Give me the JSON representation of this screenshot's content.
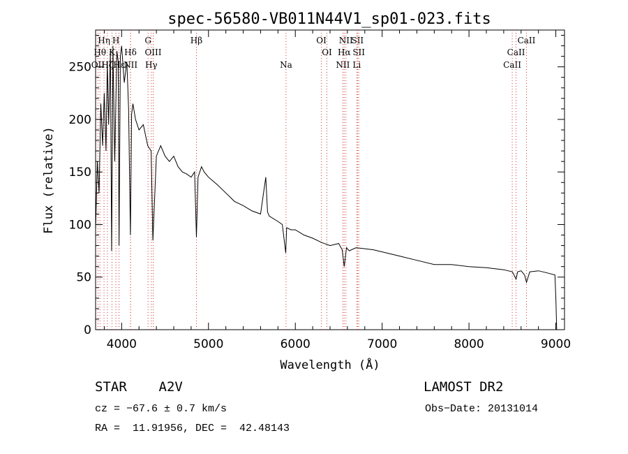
{
  "chart_data": {
    "type": "line",
    "title": "spec-56580-VB011N44V1_sp01-023.fits",
    "xlabel": "Wavelength (Å)",
    "ylabel": "Flux (relative)",
    "xlim": [
      3700,
      9100
    ],
    "ylim": [
      0,
      285
    ],
    "xticks": [
      4000,
      5000,
      6000,
      7000,
      8000,
      9000
    ],
    "yticks": [
      0,
      50,
      100,
      150,
      200,
      250
    ],
    "grid": false,
    "series": [
      {
        "x": [
          3700,
          3720,
          3740,
          3760,
          3780,
          3800,
          3820,
          3835,
          3850,
          3870,
          3885,
          3900,
          3920,
          3945,
          3960,
          3970,
          3985,
          4000,
          4030,
          4060,
          4080,
          4101,
          4115,
          4130,
          4160,
          4200,
          4250,
          4300,
          4340,
          4360,
          4400,
          4450,
          4500,
          4550,
          4600,
          4650,
          4700,
          4750,
          4800,
          4840,
          4861,
          4880,
          4920,
          4950,
          5000,
          5100,
          5200,
          5300,
          5400,
          5500,
          5600,
          5660,
          5680,
          5700,
          5800,
          5850,
          5890,
          5900,
          5950,
          6000,
          6100,
          6200,
          6300,
          6400,
          6500,
          6540,
          6563,
          6590,
          6620,
          6700,
          6800,
          6900,
          7000,
          7200,
          7400,
          7600,
          7800,
          8000,
          8200,
          8400,
          8500,
          8542,
          8560,
          8600,
          8640,
          8662,
          8700,
          8800,
          8900,
          8990,
          9000,
          9010
        ],
        "y": [
          95,
          160,
          130,
          215,
          175,
          225,
          170,
          255,
          195,
          265,
          75,
          270,
          160,
          265,
          255,
          80,
          260,
          270,
          235,
          255,
          210,
          90,
          205,
          215,
          200,
          190,
          195,
          175,
          170,
          85,
          165,
          175,
          165,
          160,
          165,
          155,
          150,
          148,
          145,
          150,
          88,
          145,
          155,
          150,
          145,
          138,
          130,
          122,
          118,
          113,
          110,
          145,
          112,
          108,
          103,
          100,
          73,
          97,
          95,
          95,
          90,
          87,
          83,
          80,
          82,
          76,
          60,
          78,
          75,
          78,
          77,
          76,
          74,
          70,
          66,
          62,
          62,
          60,
          59,
          57,
          55,
          48,
          55,
          56,
          52,
          45,
          55,
          56,
          54,
          52,
          30,
          0
        ]
      }
    ],
    "line_markers": [
      {
        "label": "OII",
        "x": 3727,
        "row": 3
      },
      {
        "label": "Hθ",
        "x": 3750,
        "row": 2
      },
      {
        "label": "Hη",
        "x": 3797,
        "row": 1
      },
      {
        "label": "Hζ",
        "x": 3835,
        "row": 3
      },
      {
        "label": "K",
        "x": 3889,
        "row": 2
      },
      {
        "label": "H",
        "x": 3934,
        "row": 1
      },
      {
        "label": "Hε",
        "x": 3970,
        "row": 3
      },
      {
        "label": "Hδ",
        "x": 4102,
        "row": 2
      },
      {
        "label": "NII",
        "x": 4103,
        "row": 3
      },
      {
        "label": "G",
        "x": 4304,
        "row": 1
      },
      {
        "label": "OIII",
        "x": 4363,
        "row": 2
      },
      {
        "label": "Hγ",
        "x": 4341,
        "row": 3
      },
      {
        "label": "Hβ",
        "x": 4861,
        "row": 1
      },
      {
        "label": "Na",
        "x": 5893,
        "row": 3
      },
      {
        "label": "OI",
        "x": 6300,
        "row": 1
      },
      {
        "label": "OI",
        "x": 6364,
        "row": 2
      },
      {
        "label": "NII",
        "x": 6548,
        "row": 3
      },
      {
        "label": "NII",
        "x": 6583,
        "row": 1
      },
      {
        "label": "Hα",
        "x": 6563,
        "row": 2
      },
      {
        "label": "SII",
        "x": 6716,
        "row": 1
      },
      {
        "label": "SII",
        "x": 6731,
        "row": 2
      },
      {
        "label": "Li",
        "x": 6708,
        "row": 3
      },
      {
        "label": "CaII",
        "x": 8498,
        "row": 3
      },
      {
        "label": "CaII",
        "x": 8542,
        "row": 2
      },
      {
        "label": "CaII",
        "x": 8662,
        "row": 1
      }
    ]
  },
  "info": {
    "object_class": "STAR    A2V",
    "survey": "LAMOST DR2",
    "redshift": "cz = −67.6 ± 0.7 km/s",
    "obs_date": "Obs−Date: 20131014",
    "coords": "RA =  11.91956, DEC =  42.48143"
  },
  "colors": {
    "spectrum": "#000000",
    "marker_line": "#cc3333",
    "text": "#000000"
  }
}
